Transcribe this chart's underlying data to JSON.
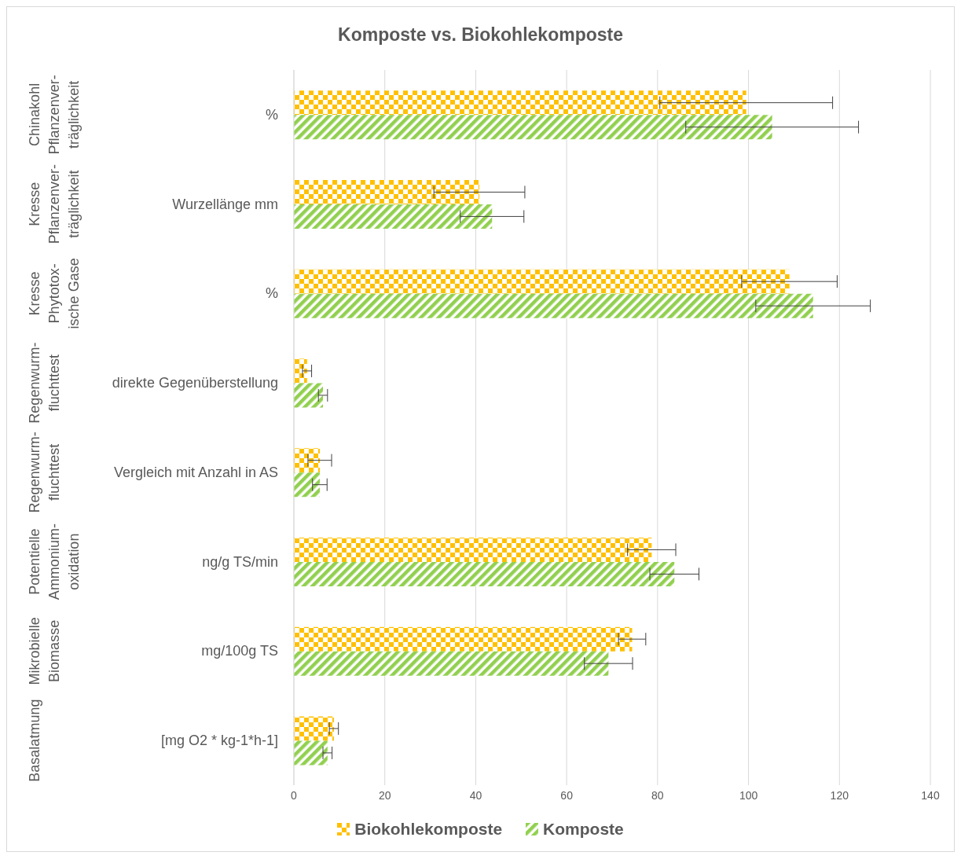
{
  "chart_data": {
    "type": "bar",
    "orientation": "horizontal",
    "title": "Komposte vs. Biokohlekomposte",
    "categories": [
      "%",
      "Wurzellänge mm",
      "%",
      "direkte Gegenüberstellung",
      "Vergleich mit Anzahl in AS",
      "ng/g TS/min",
      "mg/100g TS",
      "[mg O2 * kg-1*h-1]"
    ],
    "annotations": [
      "Chinakohl\nPflanzenver-\nträglichkeit",
      "Kresse\nPflanzenver-\nträglichkeit",
      "Kresse\nPhytotox-\nische Gase",
      "Regenwurm-\nfluchttest",
      "Regenwurm-\nfluchttest",
      "Potentielle\nAmmonium-\noxidation",
      "Mikrobielle\nBiomasse",
      "Basalatmung"
    ],
    "series": [
      {
        "name": "Biokohlekomposte",
        "color": "#ffc000",
        "values": [
          99.5,
          40.8,
          109,
          2.9,
          5.7,
          78.7,
          74.4,
          8.8
        ],
        "errors": [
          19,
          10,
          10.5,
          1,
          2.6,
          5.3,
          3,
          1
        ]
      },
      {
        "name": "Komposte",
        "color": "#92d050",
        "values": [
          105.2,
          43.6,
          114.2,
          6.4,
          5.7,
          83.7,
          69.2,
          7.4
        ],
        "errors": [
          19,
          7,
          12.6,
          1,
          1.6,
          5.4,
          5.3,
          1
        ]
      }
    ],
    "xlim": [
      0,
      140
    ],
    "xticks": [
      0,
      20,
      40,
      60,
      80,
      100,
      120,
      140
    ],
    "grid": "x",
    "legend": "bottom"
  }
}
